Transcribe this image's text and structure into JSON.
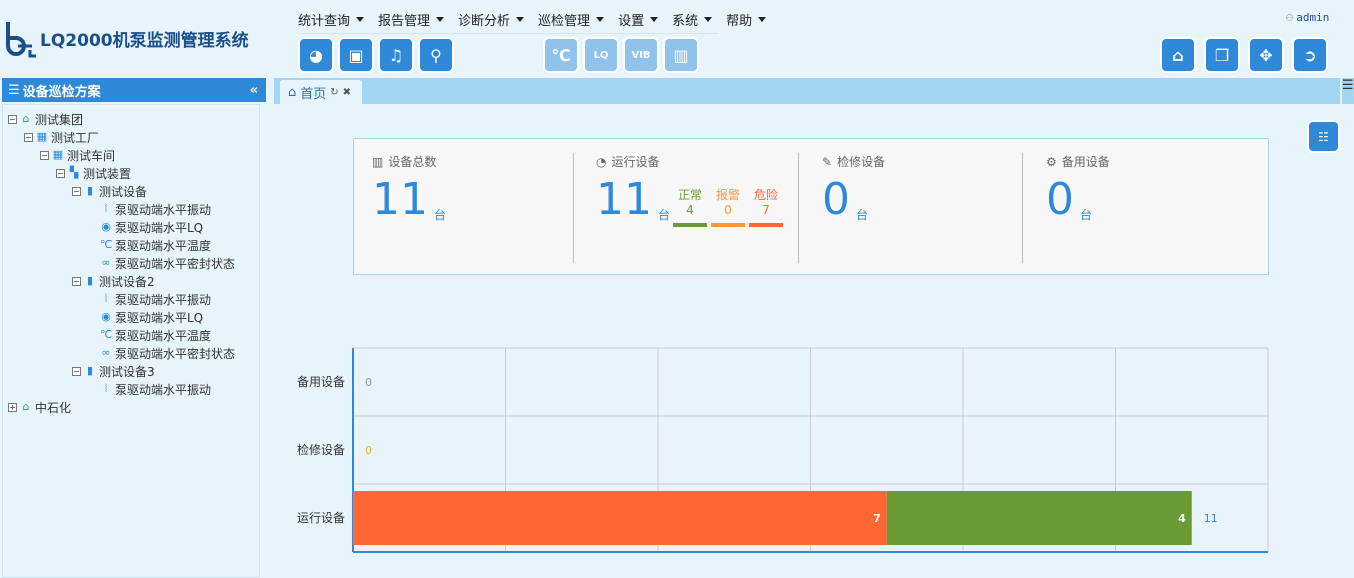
{
  "app": {
    "title": "LQ2000机泵监测管理系统",
    "user": "admin"
  },
  "menu": [
    {
      "label": "统计查询"
    },
    {
      "label": "报告管理"
    },
    {
      "label": "诊断分析"
    },
    {
      "label": "巡检管理"
    },
    {
      "label": "设置"
    },
    {
      "label": "系统"
    },
    {
      "label": "帮助"
    }
  ],
  "toolbar": {
    "left": [
      "pie-chart-icon",
      "device-alarm-icon",
      "bell-icon",
      "search-chart-icon"
    ],
    "disabled": [
      "temperature-trend-icon",
      "lq-trend-icon",
      "vib-trend-icon",
      "bar-trend-icon"
    ],
    "right": [
      "home-icon",
      "window-switch-icon",
      "fullscreen-icon",
      "logout-icon"
    ]
  },
  "sidebar": {
    "title": "设备巡检方案",
    "tree": [
      {
        "label": "测试集团",
        "level": 0,
        "icon": "group",
        "pm": "-"
      },
      {
        "label": "测试工厂",
        "level": 1,
        "icon": "factory",
        "pm": "-"
      },
      {
        "label": "测试车间",
        "level": 2,
        "icon": "workshop",
        "pm": "-"
      },
      {
        "label": "测试装置",
        "level": 3,
        "icon": "unit",
        "pm": "-"
      },
      {
        "label": "测试设备",
        "level": 4,
        "icon": "device",
        "pm": "-"
      },
      {
        "label": "泵驱动端水平振动",
        "level": 5,
        "icon": "vib"
      },
      {
        "label": "泵驱动端水平LQ",
        "level": 5,
        "icon": "lq"
      },
      {
        "label": "泵驱动端水平温度",
        "level": 5,
        "icon": "temp"
      },
      {
        "label": "泵驱动端水平密封状态",
        "level": 5,
        "icon": "seal"
      },
      {
        "label": "测试设备2",
        "level": 4,
        "icon": "device",
        "pm": "-"
      },
      {
        "label": "泵驱动端水平振动",
        "level": 5,
        "icon": "vib"
      },
      {
        "label": "泵驱动端水平LQ",
        "level": 5,
        "icon": "lq"
      },
      {
        "label": "泵驱动端水平温度",
        "level": 5,
        "icon": "temp"
      },
      {
        "label": "泵驱动端水平密封状态",
        "level": 5,
        "icon": "seal"
      },
      {
        "label": "测试设备3",
        "level": 4,
        "icon": "device",
        "pm": "-"
      },
      {
        "label": "泵驱动端水平振动",
        "level": 5,
        "icon": "vib"
      },
      {
        "label": "中石化",
        "level": 0,
        "icon": "group",
        "pm": "+"
      }
    ]
  },
  "tabs": [
    {
      "label": "首页"
    }
  ],
  "summary": {
    "total": {
      "label": "设备总数",
      "value": "11",
      "unit": "台"
    },
    "running": {
      "label": "运行设备",
      "value": "11",
      "unit": "台",
      "normal_label": "正常",
      "normal": "4",
      "warn_label": "报警",
      "warn": "0",
      "danger_label": "危险",
      "danger": "7"
    },
    "repair": {
      "label": "检修设备",
      "value": "0",
      "unit": "台"
    },
    "standby": {
      "label": "备用设备",
      "value": "0",
      "unit": "台"
    }
  },
  "colors": {
    "accent": "#2e8ad8",
    "normal": "#6a9a34",
    "warn": "#ff9933",
    "danger": "#ff6633"
  },
  "chart_data": {
    "type": "bar",
    "orientation": "horizontal",
    "stacked": true,
    "categories": [
      "备用设备",
      "检修设备",
      "运行设备"
    ],
    "series": [
      {
        "values": [
          0,
          0,
          7
        ],
        "color": "#ff6633"
      },
      {
        "values": [
          0,
          0,
          4
        ],
        "color": "#6a9a34"
      }
    ],
    "totals": [
      0,
      0,
      11
    ],
    "xlim": [
      0,
      12
    ],
    "grid": true
  }
}
